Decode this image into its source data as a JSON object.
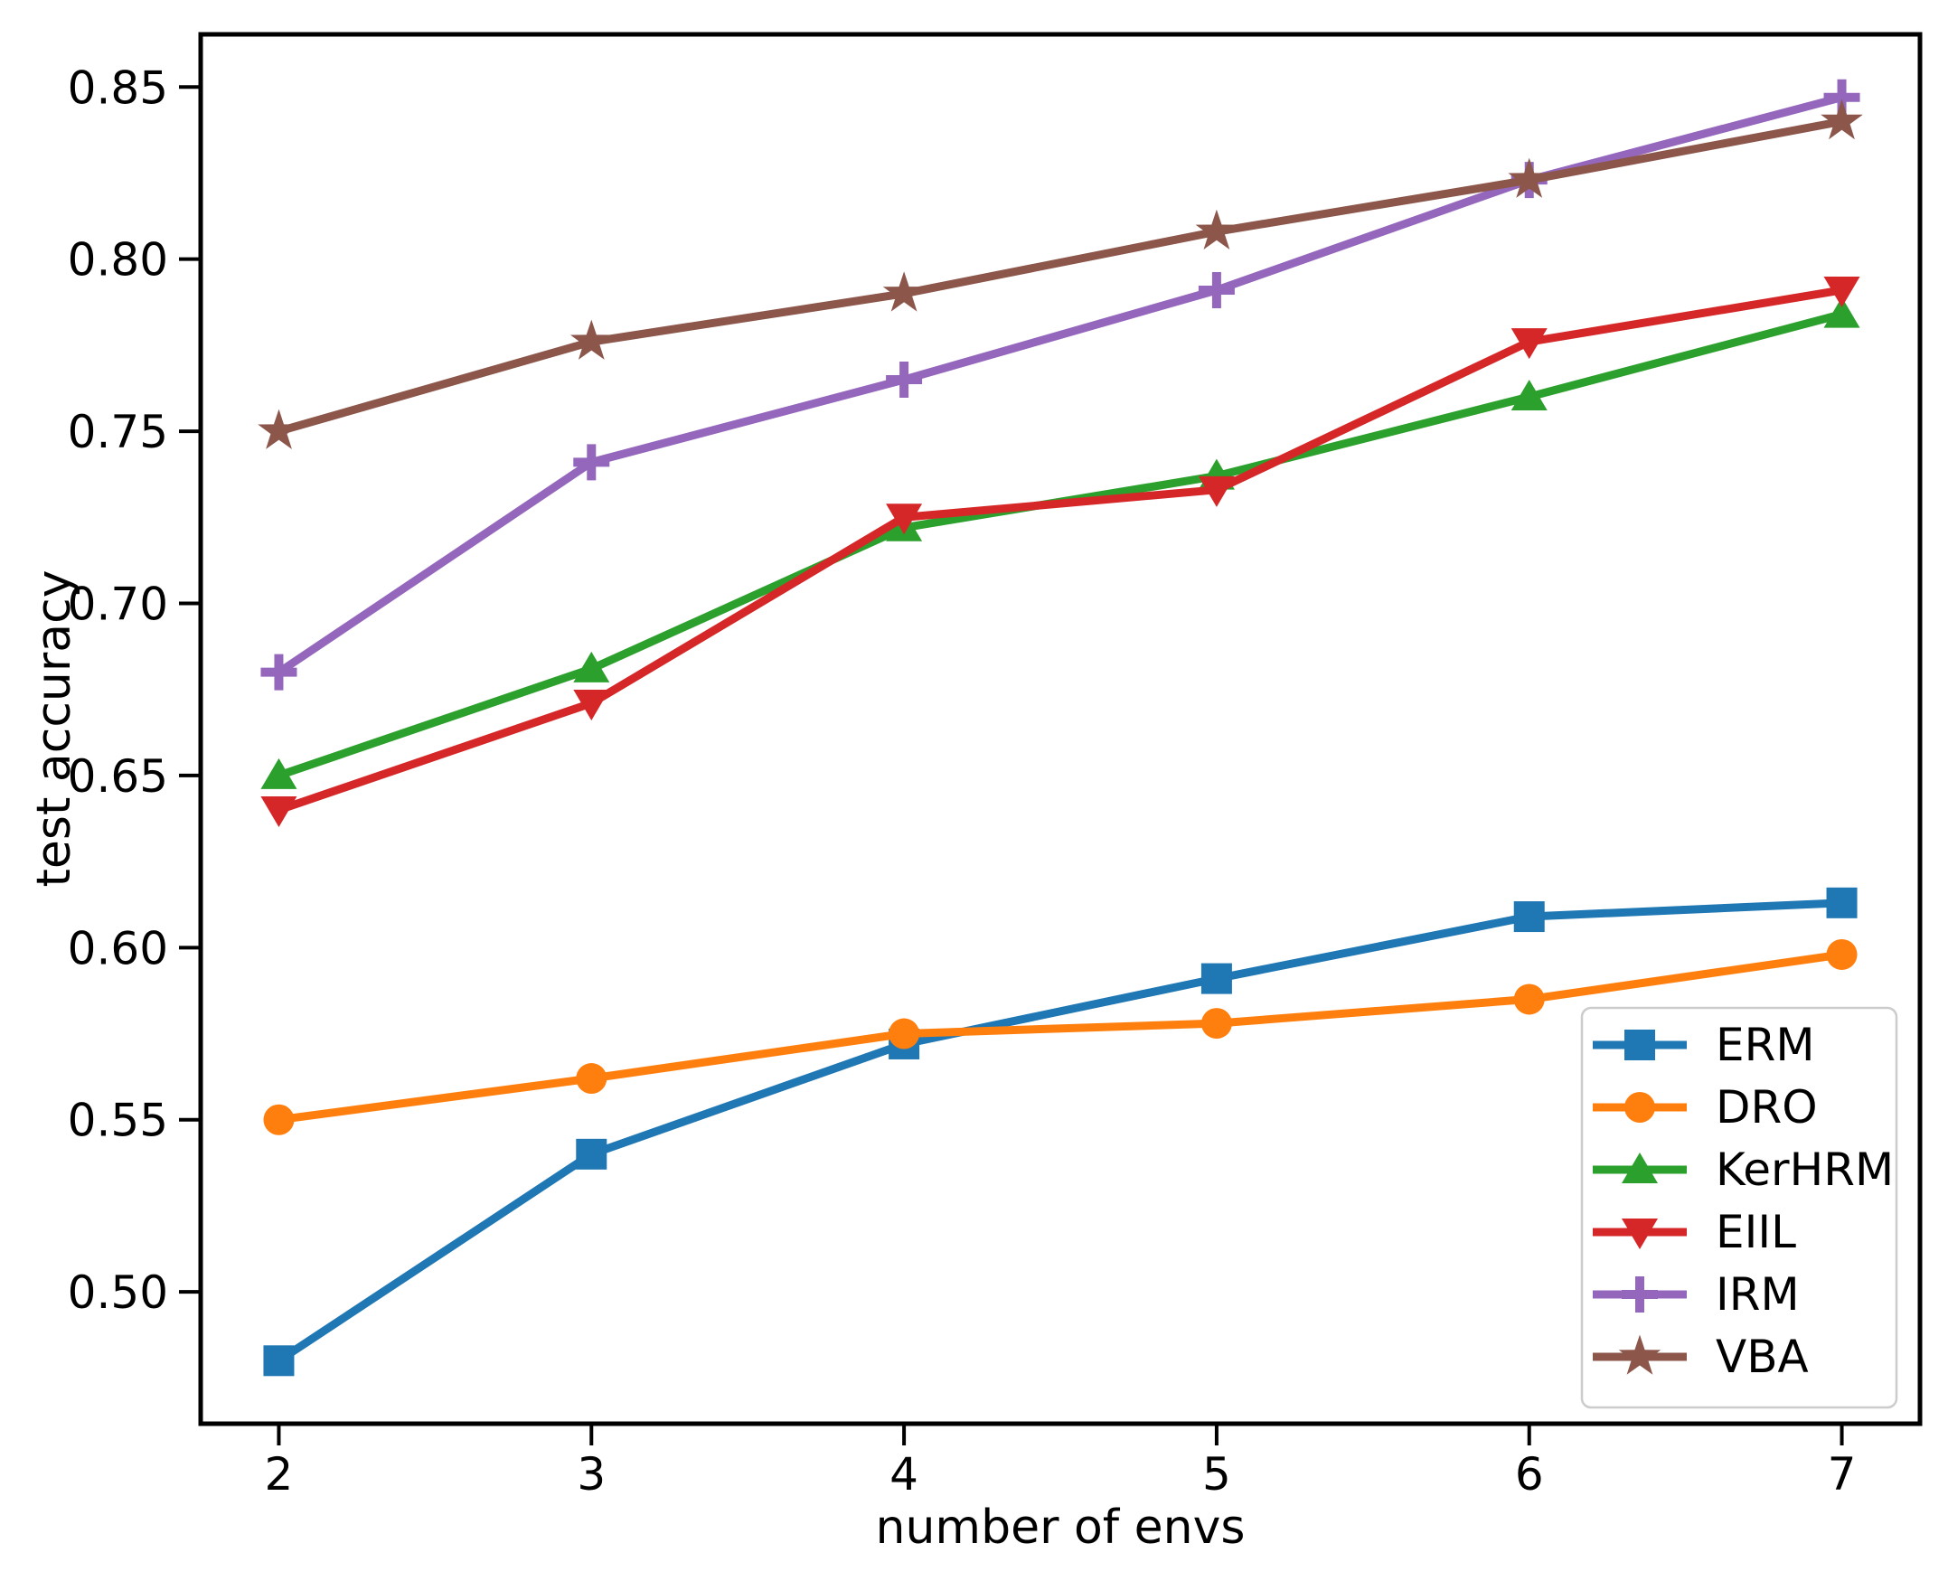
{
  "chart_data": {
    "type": "line",
    "title": "",
    "xlabel": "number of envs",
    "ylabel": "test accuracy",
    "x": [
      2,
      3,
      4,
      5,
      6,
      7
    ],
    "x_ticks": [
      "2",
      "3",
      "4",
      "5",
      "6",
      "7"
    ],
    "y_ticks": [
      "0.50",
      "0.55",
      "0.60",
      "0.65",
      "0.70",
      "0.75",
      "0.80",
      "0.85"
    ],
    "xlim": [
      1.75,
      7.25
    ],
    "ylim": [
      0.4617,
      0.8653
    ],
    "grid": false,
    "series": [
      {
        "name": "ERM",
        "color": "#1f77b4",
        "marker": "square",
        "values": [
          0.48,
          0.54,
          0.572,
          0.591,
          0.609,
          0.613
        ]
      },
      {
        "name": "DRO",
        "color": "#ff7f0e",
        "marker": "circle",
        "values": [
          0.55,
          0.562,
          0.575,
          0.578,
          0.585,
          0.598
        ]
      },
      {
        "name": "KerHRM",
        "color": "#2ca02c",
        "marker": "triangle-up",
        "values": [
          0.65,
          0.681,
          0.722,
          0.737,
          0.76,
          0.784
        ]
      },
      {
        "name": "EIIL",
        "color": "#d62728",
        "marker": "triangle-down",
        "values": [
          0.64,
          0.671,
          0.725,
          0.733,
          0.776,
          0.791
        ]
      },
      {
        "name": "IRM",
        "color": "#9467bd",
        "marker": "plus",
        "values": [
          0.68,
          0.741,
          0.765,
          0.791,
          0.823,
          0.847
        ]
      },
      {
        "name": "VBA",
        "color": "#8c564b",
        "marker": "star",
        "values": [
          0.75,
          0.776,
          0.79,
          0.808,
          0.823,
          0.84
        ]
      }
    ],
    "legend": {
      "position": "lower right",
      "entries": [
        "ERM",
        "DRO",
        "KerHRM",
        "EIIL",
        "IRM",
        "VBA"
      ],
      "border_color": "#cccccc",
      "background": "#ffffff"
    },
    "axis_color": "#000000"
  }
}
